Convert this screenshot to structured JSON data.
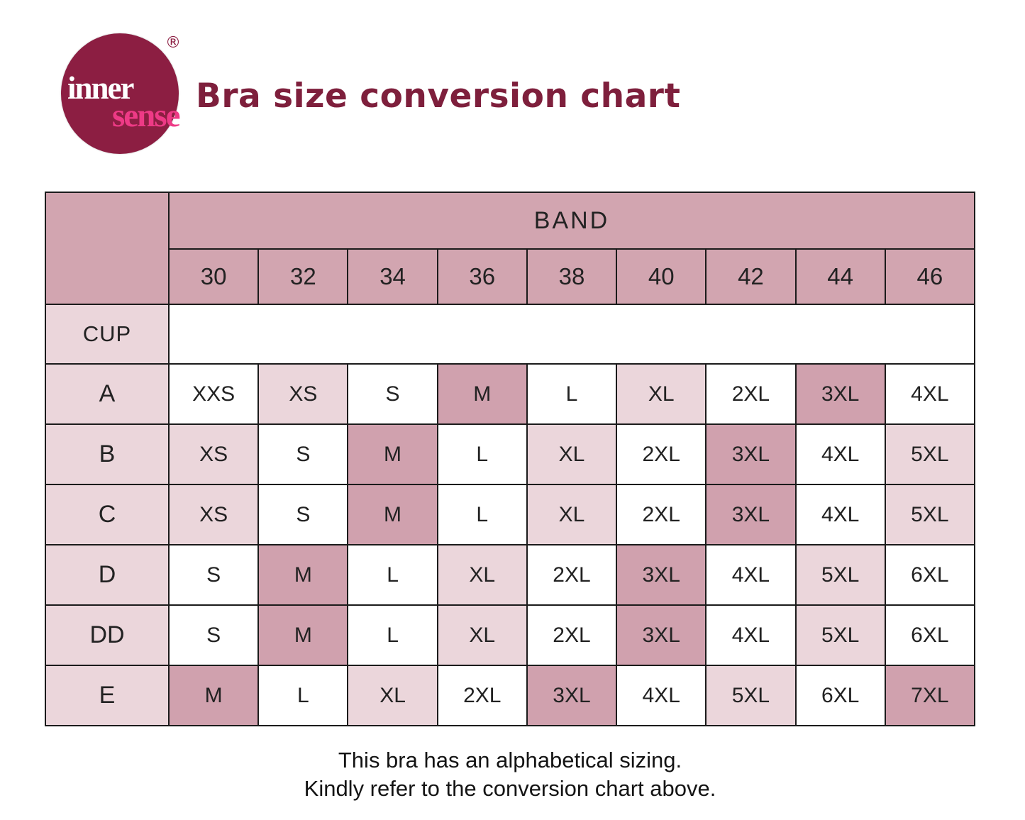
{
  "logo": {
    "word_top": "inner",
    "word_bottom": "sense",
    "registered_mark": "®",
    "circle_color": "#8c1e42",
    "word_top_color": "#ffffff",
    "word_bottom_color": "#ee3a86"
  },
  "header": {
    "title": "Bra size conversion chart",
    "title_color": "#7e1f3c"
  },
  "chart_data": {
    "type": "table",
    "title": "Bra size conversion chart",
    "column_group_header": "BAND",
    "row_group_header": "CUP",
    "columns": [
      "30",
      "32",
      "34",
      "36",
      "38",
      "40",
      "42",
      "44",
      "46"
    ],
    "rows": [
      {
        "cup": "A",
        "sizes": [
          "XXS",
          "XS",
          "S",
          "M",
          "L",
          "XL",
          "2XL",
          "3XL",
          "4XL"
        ]
      },
      {
        "cup": "B",
        "sizes": [
          "XS",
          "S",
          "M",
          "L",
          "XL",
          "2XL",
          "3XL",
          "4XL",
          "5XL"
        ]
      },
      {
        "cup": "C",
        "sizes": [
          "XS",
          "S",
          "M",
          "L",
          "XL",
          "2XL",
          "3XL",
          "4XL",
          "5XL"
        ]
      },
      {
        "cup": "D",
        "sizes": [
          "S",
          "M",
          "L",
          "XL",
          "2XL",
          "3XL",
          "4XL",
          "5XL",
          "6XL"
        ]
      },
      {
        "cup": "DD",
        "sizes": [
          "S",
          "M",
          "L",
          "XL",
          "2XL",
          "3XL",
          "4XL",
          "5XL",
          "6XL"
        ]
      },
      {
        "cup": "E",
        "sizes": [
          "M",
          "L",
          "XL",
          "2XL",
          "3XL",
          "4XL",
          "5XL",
          "6XL",
          "7XL"
        ]
      }
    ],
    "cell_shade_by_size": {
      "XXS": "white",
      "XS": "light",
      "S": "white",
      "M": "dark",
      "L": "white",
      "XL": "light",
      "2XL": "white",
      "3XL": "dark",
      "4XL": "white",
      "5XL": "light",
      "6XL": "white",
      "7XL": "dark"
    },
    "shade_colors": {
      "white": "#ffffff",
      "light": "#ebd6db",
      "dark": "#d0a1ae"
    },
    "header_fill": "#d2a5b0",
    "label_fill": "#ebd6db",
    "border_color": "#1b1b1b",
    "legend_position": "none",
    "grid": true
  },
  "footer": {
    "line1": "This bra has an alphabetical sizing.",
    "line2": "Kindly refer to the conversion chart above."
  }
}
